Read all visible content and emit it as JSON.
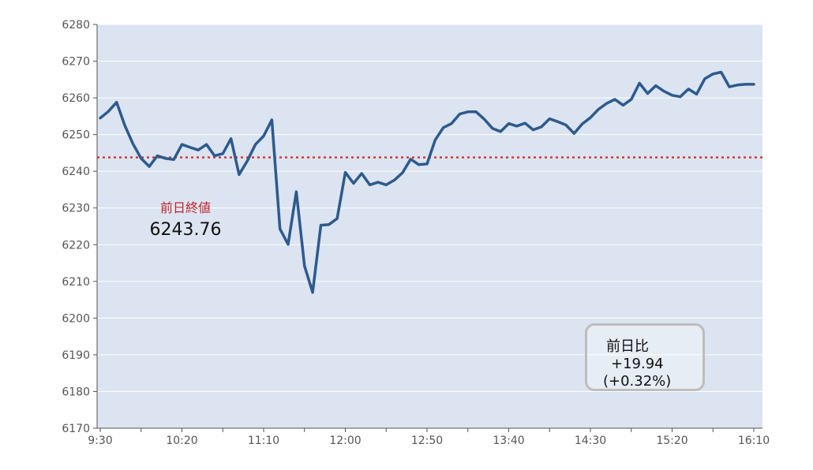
{
  "chart_data": {
    "type": "line",
    "title": "",
    "xlabel": "",
    "ylabel": "",
    "ylim": [
      6170,
      6280
    ],
    "yticks": [
      6170,
      6180,
      6190,
      6200,
      6210,
      6220,
      6230,
      6240,
      6250,
      6260,
      6270,
      6280
    ],
    "xticks": [
      "9:30",
      "10:20",
      "11:10",
      "12:00",
      "12:50",
      "13:40",
      "14:30",
      "15:20",
      "16:10"
    ],
    "grid": true,
    "colors": {
      "line": "#2e5a8e",
      "plot_bg": "#dbe4f0",
      "grid": "#ffffff",
      "reference": "#d13a3a",
      "axis": "#555555"
    },
    "series": [
      {
        "values": [
          [
            "9:30",
            6254.5
          ],
          [
            "9:35",
            6256.3
          ],
          [
            "9:40",
            6258.8
          ],
          [
            "9:45",
            6252.5
          ],
          [
            "9:50",
            6247.5
          ],
          [
            "9:55",
            6243.5
          ],
          [
            "10:00",
            6241.3
          ],
          [
            "10:05",
            6244.2
          ],
          [
            "10:10",
            6243.5
          ],
          [
            "10:15",
            6243.2
          ],
          [
            "10:20",
            6247.3
          ],
          [
            "10:25",
            6246.5
          ],
          [
            "10:30",
            6245.8
          ],
          [
            "10:35",
            6247.3
          ],
          [
            "10:40",
            6244.2
          ],
          [
            "10:45",
            6244.8
          ],
          [
            "10:50",
            6248.9
          ],
          [
            "10:55",
            6239.1
          ],
          [
            "11:00",
            6242.8
          ],
          [
            "11:05",
            6247.3
          ],
          [
            "11:10",
            6249.6
          ],
          [
            "11:15",
            6254.0
          ],
          [
            "11:20",
            6224.3
          ],
          [
            "11:25",
            6220.1
          ],
          [
            "11:30",
            6234.4
          ],
          [
            "11:35",
            6214.2
          ],
          [
            "11:40",
            6207.0
          ],
          [
            "11:45",
            6225.3
          ],
          [
            "11:50",
            6225.5
          ],
          [
            "11:55",
            6227.1
          ],
          [
            "12:00",
            6239.7
          ],
          [
            "12:05",
            6236.7
          ],
          [
            "12:10",
            6239.4
          ],
          [
            "12:15",
            6236.3
          ],
          [
            "12:20",
            6237.0
          ],
          [
            "12:25",
            6236.3
          ],
          [
            "12:30",
            6237.6
          ],
          [
            "12:35",
            6239.6
          ],
          [
            "12:40",
            6243.3
          ],
          [
            "12:45",
            6241.8
          ],
          [
            "12:50",
            6242.0
          ],
          [
            "12:55",
            6248.5
          ],
          [
            "13:00",
            6251.9
          ],
          [
            "13:05",
            6253.0
          ],
          [
            "13:10",
            6255.6
          ],
          [
            "13:15",
            6256.2
          ],
          [
            "13:20",
            6256.2
          ],
          [
            "13:25",
            6254.2
          ],
          [
            "13:30",
            6251.7
          ],
          [
            "13:35",
            6250.8
          ],
          [
            "13:40",
            6253.0
          ],
          [
            "13:45",
            6252.3
          ],
          [
            "13:50",
            6253.1
          ],
          [
            "13:55",
            6251.3
          ],
          [
            "14:00",
            6252.1
          ],
          [
            "14:05",
            6254.3
          ],
          [
            "14:10",
            6253.5
          ],
          [
            "14:15",
            6252.6
          ],
          [
            "14:20",
            6250.3
          ],
          [
            "14:25",
            6252.9
          ],
          [
            "14:30",
            6254.6
          ],
          [
            "14:35",
            6256.9
          ],
          [
            "14:40",
            6258.5
          ],
          [
            "14:45",
            6259.6
          ],
          [
            "14:50",
            6258.0
          ],
          [
            "14:55",
            6259.6
          ],
          [
            "15:00",
            6264.0
          ],
          [
            "15:05",
            6261.2
          ],
          [
            "15:10",
            6263.3
          ],
          [
            "15:15",
            6261.8
          ],
          [
            "15:20",
            6260.7
          ],
          [
            "15:25",
            6260.3
          ],
          [
            "15:30",
            6262.4
          ],
          [
            "15:35",
            6261.0
          ],
          [
            "15:40",
            6265.2
          ],
          [
            "15:45",
            6266.5
          ],
          [
            "15:50",
            6267.0
          ],
          [
            "15:55",
            6263.0
          ],
          [
            "16:00",
            6263.5
          ],
          [
            "16:05",
            6263.7
          ],
          [
            "16:10",
            6263.7
          ]
        ]
      }
    ],
    "reference_line": {
      "value": 6243.76,
      "label": "前日終値",
      "value_text": "6243.76"
    },
    "change_box": {
      "title": "前日比",
      "absolute": "+19.94",
      "percent": "(+0.32%)"
    }
  }
}
